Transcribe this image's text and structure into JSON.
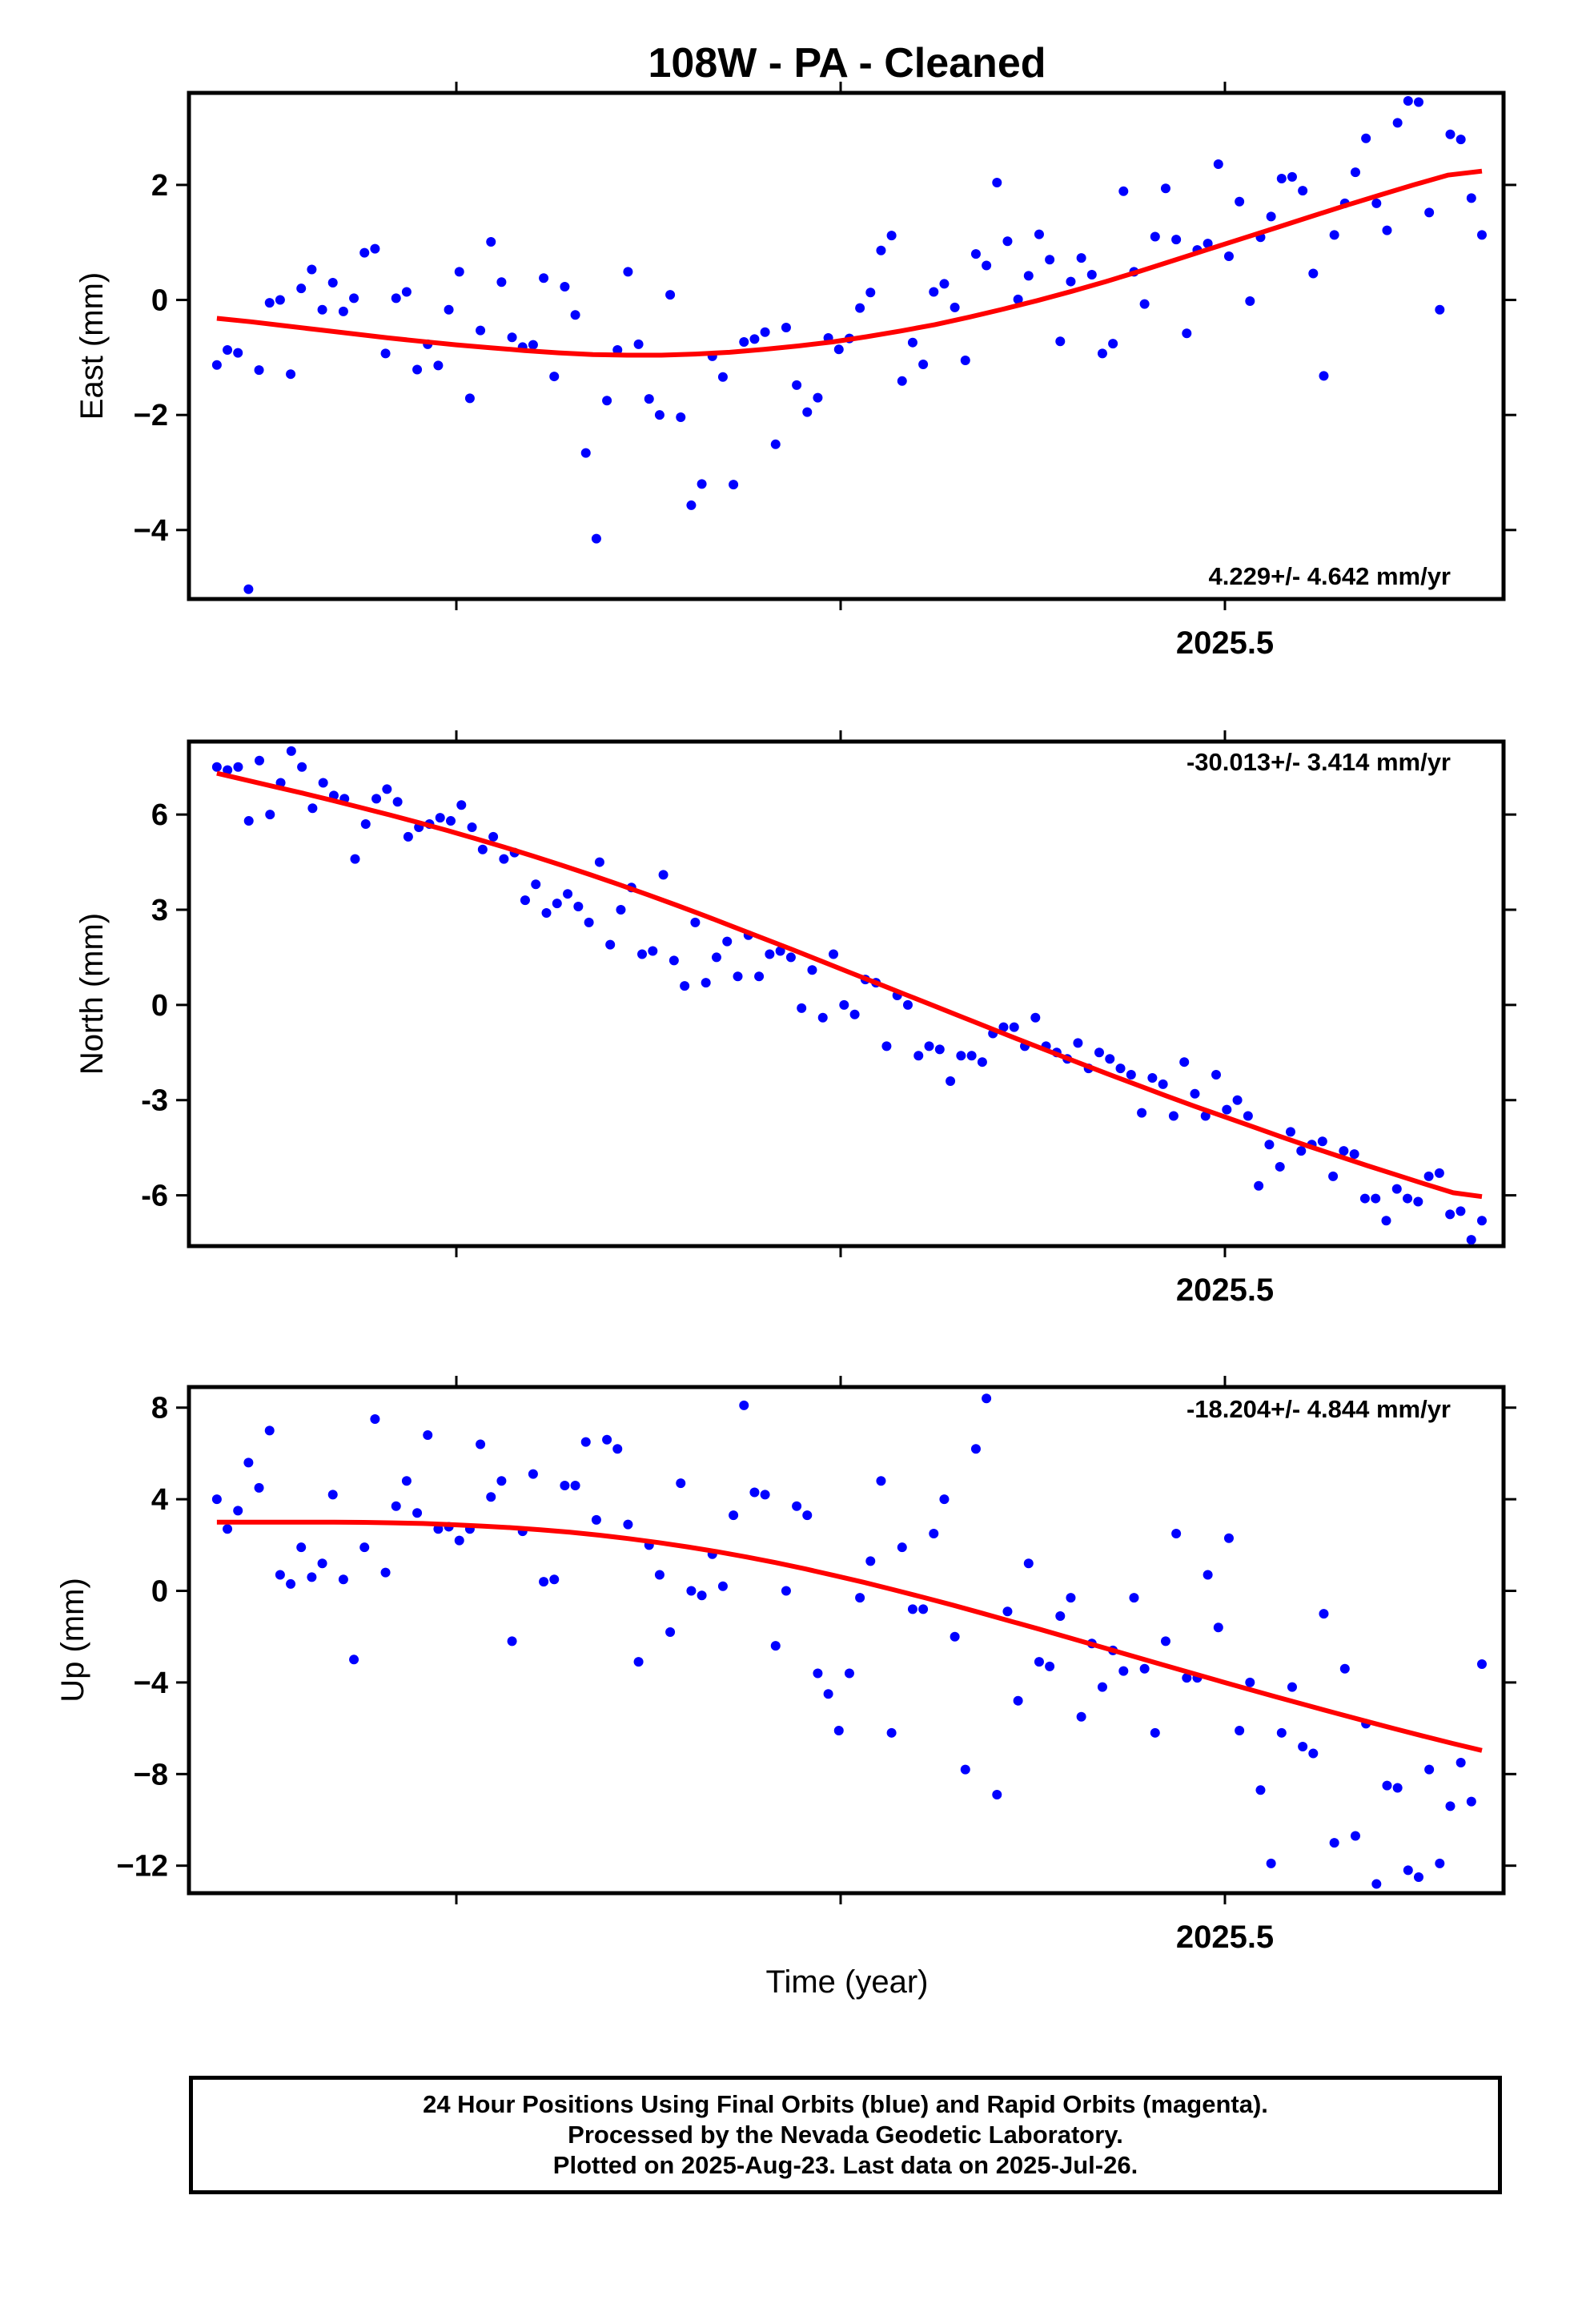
{
  "title": "108W  - PA - Cleaned",
  "xlabel": "Time (year)",
  "footer": {
    "line1": "24 Hour Positions Using Final Orbits (blue) and Rapid Orbits (magenta).",
    "line2": "Processed by the Nevada Geodetic Laboratory.",
    "line3": "Plotted on 2025-Aug-23. Last data on 2025-Jul-26."
  },
  "colors": {
    "points": "#0000ff",
    "fit": "#ff0000",
    "frame": "#000000"
  },
  "chart_data": [
    {
      "type": "scatter",
      "ylabel": "East (mm)",
      "rate_label": "4.229+/- 4.642 mm/yr",
      "xtick_labels": [
        "2025.5"
      ],
      "xlim": [
        2024.9876,
        2025.5712
      ],
      "ylim": [
        -5.2,
        3.6
      ],
      "yticks": [
        -4,
        -2,
        0,
        2
      ],
      "ytick_labels": [
        "−4",
        "−2",
        "0",
        "2"
      ],
      "grid": false,
      "series": [
        {
          "values": [
            -1.13,
            -0.87,
            -0.92,
            -5.03,
            -1.22,
            -0.05,
            0.0,
            -1.29,
            0.2,
            0.53,
            -0.17,
            0.3,
            -0.2,
            0.03,
            0.82,
            0.89,
            -0.93,
            0.03,
            0.14,
            -1.21,
            -0.77,
            -1.14,
            -0.17,
            0.49,
            -1.71,
            -0.53,
            1.01,
            0.31,
            -0.65,
            -0.82,
            -0.78,
            0.38,
            -1.33,
            0.23,
            -0.26,
            -2.66,
            -4.15,
            -1.75,
            -0.87,
            0.49,
            -0.77,
            -1.72,
            -2.0,
            0.09,
            -2.04,
            -3.57,
            -3.2,
            -0.98,
            -1.34,
            -3.21,
            -0.73,
            -0.68,
            -0.56,
            -2.51,
            -0.48,
            -1.48,
            -1.95,
            -1.7,
            -0.66,
            -0.86,
            -0.67,
            -0.14,
            0.13,
            0.86,
            1.12,
            -1.41,
            -0.74,
            -1.12,
            0.14,
            0.28,
            -0.13,
            -1.05,
            0.8,
            0.6,
            2.04,
            1.02,
            0.01,
            0.42,
            1.14,
            0.7,
            -0.72,
            0.32,
            0.73,
            0.44,
            -0.93,
            -0.76,
            1.89,
            0.49,
            -0.07,
            1.1,
            1.94,
            1.05,
            -0.58,
            0.87,
            0.98,
            2.36,
            0.76,
            1.71,
            -0.02,
            1.09,
            1.45,
            2.11,
            2.14,
            1.9,
            0.46,
            -1.32,
            1.13,
            1.68,
            2.22,
            2.81,
            1.68,
            1.21,
            3.08,
            3.46,
            3.44,
            1.52,
            -0.17,
            2.88,
            2.79,
            1.77,
            1.13
          ],
          "fit": [
            -0.32,
            -0.38,
            -0.45,
            -0.52,
            -0.59,
            -0.66,
            -0.72,
            -0.78,
            -0.83,
            -0.88,
            -0.92,
            -0.95,
            -0.96,
            -0.96,
            -0.94,
            -0.91,
            -0.86,
            -0.8,
            -0.73,
            -0.64,
            -0.54,
            -0.43,
            -0.3,
            -0.16,
            -0.01,
            0.15,
            0.32,
            0.5,
            0.69,
            0.88,
            1.07,
            1.26,
            1.45,
            1.64,
            1.82,
            2.0,
            2.17,
            2.24
          ]
        }
      ]
    },
    {
      "type": "scatter",
      "ylabel": "North (mm)",
      "rate_label": "-30.013+/- 3.414 mm/yr",
      "xtick_labels": [
        "2025.5"
      ],
      "xlim": [
        2024.9876,
        2025.5712
      ],
      "ylim": [
        -7.6,
        8.3
      ],
      "yticks": [
        -6,
        -3,
        0,
        3,
        6
      ],
      "ytick_labels": [
        "-6",
        "-3",
        "0",
        "3",
        "6"
      ],
      "grid": false,
      "series": [
        {
          "values": [
            7.5,
            7.4,
            7.5,
            5.8,
            7.7,
            6.0,
            7.0,
            8.0,
            7.5,
            6.2,
            7.0,
            6.6,
            6.5,
            4.6,
            5.7,
            6.5,
            6.8,
            6.4,
            5.3,
            5.6,
            5.7,
            5.9,
            5.8,
            6.3,
            5.6,
            4.9,
            5.3,
            4.6,
            4.8,
            3.3,
            3.8,
            2.9,
            3.2,
            3.5,
            3.1,
            2.6,
            4.5,
            1.9,
            3.0,
            3.7,
            1.6,
            1.7,
            4.1,
            1.4,
            0.6,
            2.6,
            0.7,
            1.5,
            2.0,
            0.9,
            2.2,
            0.9,
            1.6,
            1.7,
            1.5,
            -0.1,
            1.1,
            -0.4,
            1.6,
            0.0,
            -0.3,
            0.8,
            0.7,
            -1.3,
            0.3,
            0.0,
            -1.6,
            -1.3,
            -1.4,
            -2.4,
            -1.6,
            -1.6,
            -1.8,
            -0.9,
            -0.7,
            -0.7,
            -1.3,
            -0.4,
            -1.3,
            -1.5,
            -1.7,
            -1.2,
            -2.0,
            -1.5,
            -1.7,
            -2.0,
            -2.2,
            -3.4,
            -2.3,
            -2.5,
            -3.5,
            -1.8,
            -2.8,
            -3.5,
            -2.2,
            -3.3,
            -3.0,
            -3.5,
            -5.7,
            -4.4,
            -5.1,
            -4.0,
            -4.6,
            -4.4,
            -4.3,
            -5.4,
            -4.6,
            -4.7,
            -6.1,
            -6.1,
            -6.8,
            -5.8,
            -6.1,
            -6.2,
            -5.4,
            -5.3,
            -6.6,
            -6.5,
            -7.4,
            -6.8
          ],
          "fit": [
            7.3,
            7.09,
            6.88,
            6.67,
            6.45,
            6.22,
            5.99,
            5.75,
            5.5,
            5.24,
            4.97,
            4.69,
            4.4,
            4.1,
            3.79,
            3.47,
            3.14,
            2.8,
            2.45,
            2.1,
            1.75,
            1.39,
            1.03,
            0.67,
            0.31,
            -0.05,
            -0.41,
            -0.77,
            -1.13,
            -1.48,
            -1.83,
            -2.18,
            -2.52,
            -2.86,
            -3.19,
            -3.51,
            -3.83,
            -4.15,
            -4.46,
            -4.76,
            -5.06,
            -5.35,
            -5.64,
            -5.92,
            -6.04
          ]
        }
      ]
    },
    {
      "type": "scatter",
      "ylabel": "Up (mm)",
      "rate_label": "-18.204+/- 4.844 mm/yr",
      "xtick_labels": [
        "2025.5"
      ],
      "xlim": [
        2024.9876,
        2025.5712
      ],
      "ylim": [
        -13.2,
        8.9
      ],
      "yticks": [
        -12,
        -8,
        -4,
        0,
        4,
        8
      ],
      "ytick_labels": [
        "−12",
        "−8",
        "−4",
        "0",
        "4",
        "8"
      ],
      "grid": false,
      "series": [
        {
          "values": [
            4.0,
            2.7,
            3.5,
            5.6,
            4.5,
            7.0,
            0.7,
            0.3,
            1.9,
            0.6,
            1.2,
            4.2,
            0.5,
            -3.0,
            1.9,
            7.5,
            0.8,
            3.7,
            4.8,
            3.4,
            6.8,
            2.7,
            2.8,
            2.2,
            2.7,
            6.4,
            4.1,
            4.8,
            -2.2,
            2.6,
            5.1,
            0.4,
            0.5,
            4.6,
            4.6,
            6.5,
            3.1,
            6.6,
            6.2,
            2.9,
            -3.1,
            2.0,
            0.7,
            -1.8,
            4.7,
            0.0,
            -0.2,
            1.6,
            0.2,
            3.3,
            8.1,
            4.3,
            4.2,
            -2.4,
            0.0,
            3.7,
            3.3,
            -3.6,
            -4.5,
            -6.1,
            -3.6,
            -0.3,
            1.3,
            4.8,
            -6.2,
            1.9,
            -0.8,
            -0.8,
            2.5,
            4.0,
            -2.0,
            -7.8,
            6.2,
            8.4,
            -8.9,
            -0.9,
            -4.8,
            1.2,
            -3.1,
            -3.3,
            -1.1,
            -0.3,
            -5.5,
            -2.3,
            -4.2,
            -2.6,
            -3.5,
            -0.3,
            -3.4,
            -6.2,
            -2.2,
            2.5,
            -3.8,
            -3.8,
            0.7,
            -1.6,
            2.3,
            -6.1,
            -4.0,
            -8.7,
            -11.9,
            -6.2,
            -4.2,
            -6.8,
            -7.1,
            -1.0,
            -11.0,
            -3.4,
            -10.7,
            -5.8,
            -12.8,
            -8.5,
            -8.6,
            -12.2,
            -12.5,
            -7.8,
            -11.9,
            -9.4,
            -7.5,
            -9.2,
            -3.2
          ],
          "fit": [
            3.0,
            3.0,
            3.0,
            3.0,
            3.0,
            2.99,
            2.97,
            2.94,
            2.89,
            2.83,
            2.76,
            2.67,
            2.56,
            2.43,
            2.28,
            2.11,
            1.92,
            1.71,
            1.48,
            1.23,
            0.96,
            0.67,
            0.37,
            0.05,
            -0.28,
            -0.62,
            -0.97,
            -1.33,
            -1.69,
            -2.06,
            -2.43,
            -2.8,
            -3.17,
            -3.54,
            -3.91,
            -4.27,
            -4.63,
            -4.98,
            -5.33,
            -5.67,
            -6.01,
            -6.34,
            -6.66,
            -6.97
          ]
        }
      ]
    }
  ]
}
